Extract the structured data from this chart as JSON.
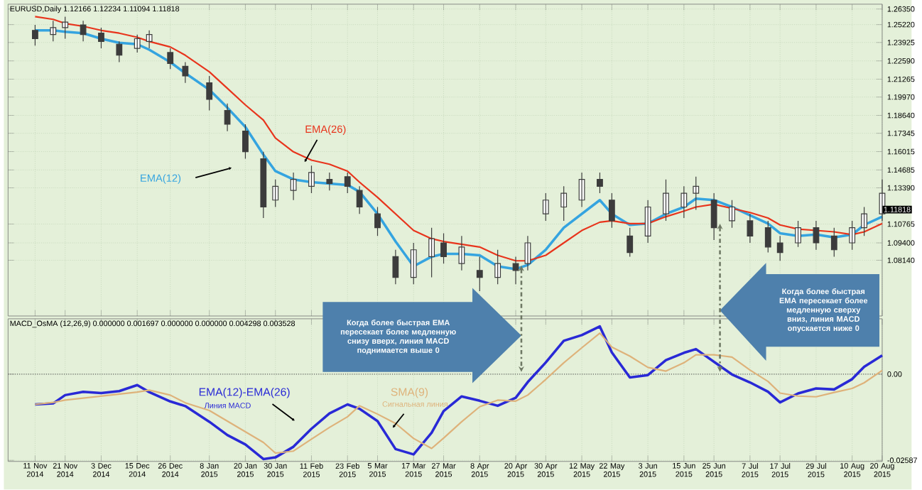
{
  "chart_data": [
    {
      "type": "candlestick",
      "title": "EURUSD,Daily 1.12166 1.12234 1.11094 1.11818",
      "color": "#3c3c3c",
      "x": [
        "2014-11-11",
        "2014-11-17",
        "2014-11-21",
        "2014-11-27",
        "2014-12-03",
        "2014-12-09",
        "2014-12-15",
        "2014-12-19",
        "2014-12-26",
        "2014-12-31",
        "2015-01-08",
        "2015-01-14",
        "2015-01-20",
        "2015-01-26",
        "2015-01-30",
        "2015-02-05",
        "2015-02-11",
        "2015-02-17",
        "2015-02-23",
        "2015-02-27",
        "2015-03-05",
        "2015-03-11",
        "2015-03-17",
        "2015-03-23",
        "2015-03-27",
        "2015-04-02",
        "2015-04-08",
        "2015-04-14",
        "2015-04-20",
        "2015-04-24",
        "2015-04-30",
        "2015-05-06",
        "2015-05-12",
        "2015-05-18",
        "2015-05-22",
        "2015-05-28",
        "2015-06-03",
        "2015-06-09",
        "2015-06-15",
        "2015-06-19",
        "2015-06-25",
        "2015-07-01",
        "2015-07-07",
        "2015-07-13",
        "2015-07-17",
        "2015-07-23",
        "2015-07-29",
        "2015-08-04",
        "2015-08-10",
        "2015-08-14",
        "2015-08-20"
      ],
      "ohlc": [
        [
          1.248,
          1.252,
          1.237,
          1.242
        ],
        [
          1.245,
          1.255,
          1.24,
          1.25
        ],
        [
          1.25,
          1.258,
          1.242,
          1.254
        ],
        [
          1.252,
          1.255,
          1.24,
          1.245
        ],
        [
          1.246,
          1.25,
          1.235,
          1.24
        ],
        [
          1.238,
          1.24,
          1.225,
          1.23
        ],
        [
          1.235,
          1.245,
          1.232,
          1.242
        ],
        [
          1.24,
          1.248,
          1.235,
          1.245
        ],
        [
          1.232,
          1.235,
          1.22,
          1.224
        ],
        [
          1.222,
          1.225,
          1.21,
          1.215
        ],
        [
          1.21,
          1.215,
          1.19,
          1.198
        ],
        [
          1.19,
          1.195,
          1.175,
          1.18
        ],
        [
          1.175,
          1.18,
          1.155,
          1.16
        ],
        [
          1.155,
          1.16,
          1.112,
          1.12
        ],
        [
          1.125,
          1.14,
          1.12,
          1.135
        ],
        [
          1.132,
          1.145,
          1.125,
          1.14
        ],
        [
          1.135,
          1.15,
          1.13,
          1.145
        ],
        [
          1.14,
          1.145,
          1.132,
          1.137
        ],
        [
          1.142,
          1.145,
          1.13,
          1.135
        ],
        [
          1.132,
          1.135,
          1.115,
          1.12
        ],
        [
          1.115,
          1.12,
          1.099,
          1.105
        ],
        [
          1.084,
          1.089,
          1.064,
          1.069
        ],
        [
          1.069,
          1.094,
          1.064,
          1.089
        ],
        [
          1.084,
          1.105,
          1.069,
          1.097
        ],
        [
          1.094,
          1.101,
          1.079,
          1.084
        ],
        [
          1.079,
          1.099,
          1.074,
          1.091
        ],
        [
          1.074,
          1.084,
          1.059,
          1.069
        ],
        [
          1.069,
          1.089,
          1.064,
          1.079
        ],
        [
          1.079,
          1.084,
          1.064,
          1.074
        ],
        [
          1.079,
          1.099,
          1.074,
          1.094
        ],
        [
          1.115,
          1.13,
          1.11,
          1.125
        ],
        [
          1.12,
          1.135,
          1.11,
          1.13
        ],
        [
          1.125,
          1.145,
          1.12,
          1.14
        ],
        [
          1.14,
          1.145,
          1.13,
          1.135
        ],
        [
          1.125,
          1.13,
          1.105,
          1.11
        ],
        [
          1.099,
          1.105,
          1.084,
          1.087
        ],
        [
          1.099,
          1.125,
          1.094,
          1.12
        ],
        [
          1.115,
          1.14,
          1.11,
          1.13
        ],
        [
          1.12,
          1.135,
          1.112,
          1.13
        ],
        [
          1.13,
          1.142,
          1.118,
          1.135
        ],
        [
          1.125,
          1.13,
          1.096,
          1.105
        ],
        [
          1.11,
          1.125,
          1.105,
          1.12
        ],
        [
          1.11,
          1.115,
          1.094,
          1.099
        ],
        [
          1.105,
          1.11,
          1.087,
          1.091
        ],
        [
          1.094,
          1.099,
          1.081,
          1.087
        ],
        [
          1.094,
          1.11,
          1.091,
          1.105
        ],
        [
          1.105,
          1.11,
          1.089,
          1.094
        ],
        [
          1.099,
          1.105,
          1.084,
          1.089
        ],
        [
          1.094,
          1.11,
          1.089,
          1.105
        ],
        [
          1.105,
          1.12,
          1.099,
          1.115
        ],
        [
          1.115,
          1.14,
          1.11,
          1.13
        ]
      ],
      "series": [
        {
          "name": "EMA(12)",
          "type": "line",
          "color": "#35a4e0",
          "values": [
            1.248,
            1.248,
            1.247,
            1.246,
            1.242,
            1.239,
            1.238,
            1.234,
            1.225,
            1.217,
            1.205,
            1.192,
            1.178,
            1.158,
            1.146,
            1.14,
            1.138,
            1.137,
            1.136,
            1.131,
            1.115,
            1.095,
            1.077,
            1.084,
            1.086,
            1.086,
            1.085,
            1.077,
            1.075,
            1.078,
            1.089,
            1.105,
            1.115,
            1.125,
            1.115,
            1.107,
            1.108,
            1.115,
            1.12,
            1.126,
            1.125,
            1.12,
            1.114,
            1.108,
            1.101,
            1.099,
            1.1,
            1.098,
            1.1,
            1.107,
            1.113
          ]
        },
        {
          "name": "EMA(26)",
          "type": "line",
          "color": "#e8341c",
          "values": [
            1.258,
            1.256,
            1.253,
            1.251,
            1.248,
            1.246,
            1.243,
            1.24,
            1.236,
            1.23,
            1.218,
            1.206,
            1.194,
            1.183,
            1.17,
            1.16,
            1.154,
            1.151,
            1.146,
            1.138,
            1.127,
            1.115,
            1.103,
            1.097,
            1.095,
            1.093,
            1.091,
            1.085,
            1.081,
            1.081,
            1.085,
            1.094,
            1.103,
            1.109,
            1.11,
            1.108,
            1.108,
            1.113,
            1.117,
            1.12,
            1.122,
            1.119,
            1.116,
            1.112,
            1.107,
            1.104,
            1.103,
            1.102,
            1.1,
            1.102,
            1.108
          ]
        }
      ],
      "xlim": [
        "2014-11-02",
        "2015-08-20"
      ],
      "ylim": [
        1.041,
        1.267
      ],
      "xticks": [
        {
          "value": "2014-11-11",
          "label": null
        },
        {
          "value": "2014-11-21",
          "label": null
        },
        {
          "value": "2014-12-03",
          "label": null
        },
        {
          "value": "2014-12-15",
          "label": null
        },
        {
          "value": "2014-12-26",
          "label": null
        },
        {
          "value": "2015-01-08",
          "label": null
        },
        {
          "value": "2015-01-20",
          "label": null
        },
        {
          "value": "2015-01-30",
          "label": null
        },
        {
          "value": "2015-02-11",
          "label": null
        },
        {
          "value": "2015-02-23",
          "label": null
        },
        {
          "value": "2015-03-05",
          "label": null
        },
        {
          "value": "2015-03-17",
          "label": null
        },
        {
          "value": "2015-03-27",
          "label": null
        },
        {
          "value": "2015-04-08",
          "label": null
        },
        {
          "value": "2015-04-20",
          "label": null
        },
        {
          "value": "2015-04-30",
          "label": null
        },
        {
          "value": "2015-05-12",
          "label": null
        },
        {
          "value": "2015-05-22",
          "label": null
        },
        {
          "value": "2015-06-03",
          "label": null
        },
        {
          "value": "2015-06-15",
          "label": null
        },
        {
          "value": "2015-06-25",
          "label": null
        },
        {
          "value": "2015-07-07",
          "label": null
        },
        {
          "value": "2015-07-17",
          "label": null
        },
        {
          "value": "2015-07-29",
          "label": null
        },
        {
          "value": "2015-08-10",
          "label": null
        },
        {
          "value": "2015-08-20",
          "label": null
        }
      ],
      "yticks": [
        {
          "value": 1.2635,
          "label": "1.26350"
        },
        {
          "value": 1.2522,
          "label": "1.25220"
        },
        {
          "value": 1.23925,
          "label": "1.23925"
        },
        {
          "value": 1.2259,
          "label": "1.22590"
        },
        {
          "value": 1.21265,
          "label": "1.21265"
        },
        {
          "value": 1.1997,
          "label": "1.19970"
        },
        {
          "value": 1.1864,
          "label": "1.18640"
        },
        {
          "value": 1.17345,
          "label": "1.17345"
        },
        {
          "value": 1.16015,
          "label": "1.16015"
        },
        {
          "value": 1.14685,
          "label": "1.14685"
        },
        {
          "value": 1.1339,
          "label": "1.13390"
        },
        {
          "value": 1.10765,
          "label": "1.10765"
        },
        {
          "value": 1.094,
          "label": "1.09400"
        },
        {
          "value": 1.0814,
          "label": "1.08140"
        }
      ],
      "tick_labels": "y",
      "grid": true,
      "annotations": [
        "Когда более быстрая EMA пересекает более медленную снизу вверх, линия MACD поднимается выше 0",
        "Когда более быстрая EMA пересекает более медленную сверху вниз, линия MACD опускается ниже 0",
        {
          "text": "1.11818",
          "x": "2015-08-20",
          "y": 1.11818
        }
      ]
    },
    {
      "type": "line",
      "title": "MACD_OsMA (12,26,9) 0.000000 0.001697 0.000000 0.000000 0.004298 0.003528",
      "x": [
        "2014-11-11",
        "2014-11-17",
        "2014-11-21",
        "2014-11-27",
        "2014-12-03",
        "2014-12-09",
        "2014-12-15",
        "2014-12-19",
        "2014-12-26",
        "2014-12-31",
        "2015-01-08",
        "2015-01-14",
        "2015-01-20",
        "2015-01-26",
        "2015-01-30",
        "2015-02-05",
        "2015-02-11",
        "2015-02-17",
        "2015-02-23",
        "2015-02-27",
        "2015-03-05",
        "2015-03-11",
        "2015-03-17",
        "2015-03-23",
        "2015-03-27",
        "2015-04-02",
        "2015-04-08",
        "2015-04-14",
        "2015-04-20",
        "2015-04-24",
        "2015-04-30",
        "2015-05-06",
        "2015-05-12",
        "2015-05-18",
        "2015-05-22",
        "2015-05-28",
        "2015-06-03",
        "2015-06-09",
        "2015-06-15",
        "2015-06-19",
        "2015-06-25",
        "2015-07-01",
        "2015-07-07",
        "2015-07-13",
        "2015-07-17",
        "2015-07-23",
        "2015-07-29",
        "2015-08-04",
        "2015-08-10",
        "2015-08-14",
        "2015-08-20"
      ],
      "series": [
        {
          "name": "EMA(12)-EMA(26)",
          "color": "#2929d6",
          "values": [
            -0.0091,
            -0.0088,
            -0.0063,
            -0.0053,
            -0.0057,
            -0.0051,
            -0.0033,
            -0.0054,
            -0.0082,
            -0.0096,
            -0.0143,
            -0.0183,
            -0.0211,
            -0.0255,
            -0.025,
            -0.0218,
            -0.0164,
            -0.0118,
            -0.0091,
            -0.0104,
            -0.0141,
            -0.0225,
            -0.0241,
            -0.0176,
            -0.0111,
            -0.0067,
            -0.008,
            -0.0095,
            -0.0071,
            -0.0024,
            0.0035,
            0.01,
            0.0117,
            0.0143,
            0.0065,
            -0.001,
            -0.0003,
            0.0042,
            0.0064,
            0.0075,
            0.0037,
            -0.0001,
            -0.0025,
            -0.0053,
            -0.0085,
            -0.0058,
            -0.0043,
            -0.0046,
            -0.0015,
            0.0022,
            0.0056
          ]
        },
        {
          "name": "SMA(9)",
          "color": "#deb27a",
          "values": [
            -0.0091,
            -0.0085,
            -0.0078,
            -0.0072,
            -0.0066,
            -0.006,
            -0.0054,
            -0.0048,
            -0.0063,
            -0.0086,
            -0.0109,
            -0.0141,
            -0.0173,
            -0.0205,
            -0.0237,
            -0.0231,
            -0.0195,
            -0.016,
            -0.0128,
            -0.0095,
            -0.012,
            -0.0148,
            -0.0193,
            -0.0223,
            -0.0192,
            -0.0143,
            -0.0098,
            -0.0078,
            -0.0081,
            -0.0063,
            -0.0016,
            0.0034,
            0.0079,
            0.0123,
            0.0081,
            0.0054,
            0.002,
            0.0009,
            0.0034,
            0.0058,
            0.0058,
            0.0051,
            0.0012,
            -0.0022,
            -0.0057,
            -0.0066,
            -0.0068,
            -0.0055,
            -0.0043,
            -0.0026,
            0.0011
          ]
        }
      ],
      "xlim": [
        "2014-11-02",
        "2015-08-20"
      ],
      "ylim": [
        -0.0262,
        0.0166
      ],
      "xticks": [
        {
          "value": "2014-11-11",
          "label": "11 Nov 2014"
        },
        {
          "value": "2014-11-21",
          "label": "21 Nov 2014"
        },
        {
          "value": "2014-12-03",
          "label": "3 Dec 2014"
        },
        {
          "value": "2014-12-15",
          "label": "15 Dec 2014"
        },
        {
          "value": "2014-12-26",
          "label": "26 Dec 2014"
        },
        {
          "value": "2015-01-08",
          "label": "8 Jan 2015"
        },
        {
          "value": "2015-01-20",
          "label": "20 Jan 2015"
        },
        {
          "value": "2015-01-30",
          "label": "30 Jan 2015"
        },
        {
          "value": "2015-02-11",
          "label": "11 Feb 2015"
        },
        {
          "value": "2015-02-23",
          "label": "23 Feb 2015"
        },
        {
          "value": "2015-03-05",
          "label": "5 Mar 2015"
        },
        {
          "value": "2015-03-17",
          "label": "17 Mar 2015"
        },
        {
          "value": "2015-03-27",
          "label": "27 Mar 2015"
        },
        {
          "value": "2015-04-08",
          "label": "8 Apr 2015"
        },
        {
          "value": "2015-04-20",
          "label": "20 Apr 2015"
        },
        {
          "value": "2015-04-30",
          "label": "30 Apr 2015"
        },
        {
          "value": "2015-05-12",
          "label": "12 May 2015"
        },
        {
          "value": "2015-05-22",
          "label": "22 May 2015"
        },
        {
          "value": "2015-06-03",
          "label": "3 Jun 2015"
        },
        {
          "value": "2015-06-15",
          "label": "15 Jun 2015"
        },
        {
          "value": "2015-06-25",
          "label": "25 Jun 2015"
        },
        {
          "value": "2015-07-07",
          "label": "7 Jul 2015"
        },
        {
          "value": "2015-07-17",
          "label": "17 Jul 2015"
        },
        {
          "value": "2015-07-29",
          "label": "29 Jul 2015"
        },
        {
          "value": "2015-08-10",
          "label": "10 Aug 2015"
        },
        {
          "value": "2015-08-20",
          "label": "20 Aug 2015"
        }
      ],
      "yticks": [
        {
          "value": 0,
          "label": "0.00"
        },
        -0.02587
      ],
      "grid": true,
      "ref_lines": [
        {
          "axis": "y",
          "value": 0,
          "line_style": "dotted",
          "color": "#606060"
        }
      ],
      "annotations": [
        "Линия MACD",
        "Сигнальная линия"
      ]
    }
  ]
}
